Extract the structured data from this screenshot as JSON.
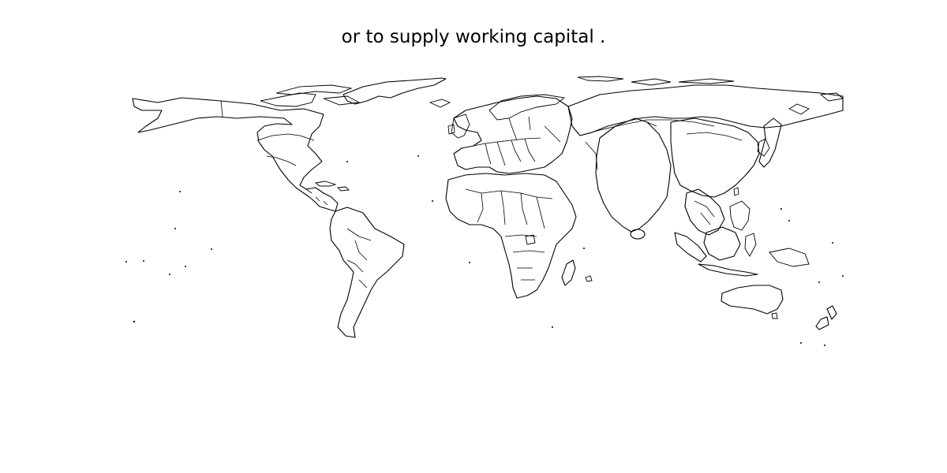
{
  "figure": {
    "title": "or to supply working capital ."
  },
  "map": {
    "type": "cartogram",
    "projection": "equirectangular",
    "style": {
      "land_fill": "#ffffff",
      "outline_color": "#000000",
      "background": "#ffffff"
    },
    "regions": [
      "north-america",
      "greenland",
      "south-america",
      "europe",
      "africa",
      "madagascar",
      "russia",
      "india",
      "sri-lanka",
      "china",
      "japan",
      "southeast-asia",
      "indonesia",
      "australia",
      "new-zealand"
    ]
  }
}
